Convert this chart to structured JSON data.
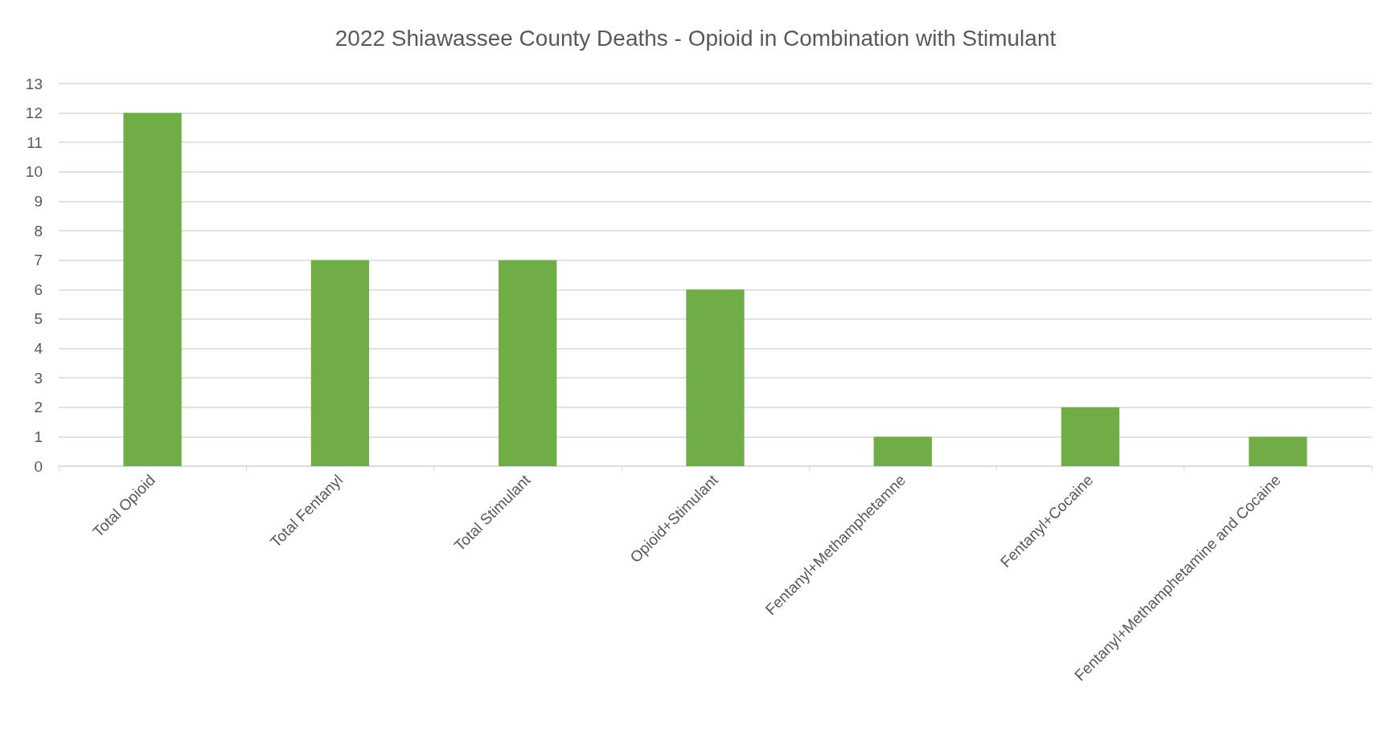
{
  "chart_data": {
    "type": "bar",
    "title": "2022 Shiawassee County Deaths - Opioid in Combination with Stimulant",
    "categories": [
      "Total Opioid",
      "Total Fentanyl",
      "Total Stimulant",
      "Opioid+Stimulant",
      "Fentanyl+Methamphetamne",
      "Fentanyl+Cocaine",
      "Fentanyl+Methamphetamine and Cocaine"
    ],
    "values": [
      12,
      7,
      7,
      6,
      1,
      2,
      1
    ],
    "color": "#70ad47",
    "ylim": [
      0,
      13
    ],
    "yticks": [
      0,
      1,
      2,
      3,
      4,
      5,
      6,
      7,
      8,
      9,
      10,
      11,
      12,
      13
    ],
    "grid": "y"
  }
}
